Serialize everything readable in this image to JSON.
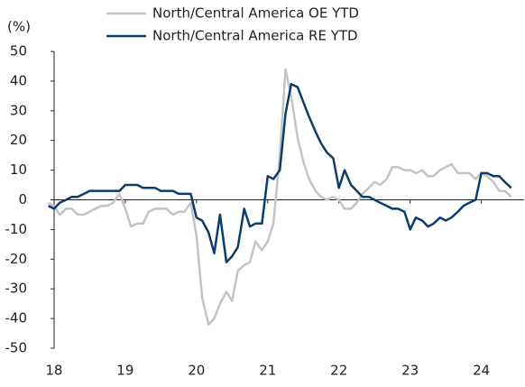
{
  "chart_data": {
    "type": "line",
    "y_unit": "(%)",
    "x": [
      17.92,
      18,
      18.08,
      18.17,
      18.25,
      18.33,
      18.42,
      18.5,
      18.58,
      18.67,
      18.75,
      18.83,
      18.92,
      19,
      19.08,
      19.17,
      19.25,
      19.33,
      19.42,
      19.5,
      19.58,
      19.67,
      19.75,
      19.83,
      19.92,
      20,
      20.08,
      20.17,
      20.25,
      20.33,
      20.42,
      20.5,
      20.58,
      20.67,
      20.75,
      20.83,
      20.92,
      21,
      21.08,
      21.17,
      21.25,
      21.33,
      21.42,
      21.5,
      21.58,
      21.67,
      21.75,
      21.83,
      21.92,
      22,
      22.08,
      22.17,
      22.25,
      22.33,
      22.42,
      22.5,
      22.58,
      22.67,
      22.75,
      22.83,
      22.92,
      23,
      23.08,
      23.17,
      23.25,
      23.33,
      23.42,
      23.5,
      23.58,
      23.67,
      23.75,
      23.83,
      23.92,
      24,
      24.08,
      24.17,
      24.25,
      24.33,
      24.42
    ],
    "series": [
      {
        "name": "North/Central America OE YTD",
        "color": "#c3c3c3",
        "values": [
          -1,
          -2,
          -5,
          -3,
          -3,
          -5,
          -5,
          -4,
          -3,
          -2,
          -2,
          -1,
          2,
          -3,
          -9,
          -8,
          -8,
          -4,
          -3,
          -3,
          -3,
          -5,
          -4,
          -4,
          -1,
          -12,
          -33,
          -42,
          -40,
          -35,
          -31,
          -34,
          -24,
          -22,
          -21,
          -14,
          -17,
          -14,
          -8,
          15,
          44,
          35,
          21,
          13,
          7,
          3,
          1,
          0,
          1,
          0,
          -3,
          -3,
          -1,
          2,
          4,
          6,
          5,
          7,
          11,
          11,
          10,
          10,
          9,
          10,
          8,
          8,
          10,
          11,
          12,
          9,
          9,
          9,
          7,
          9,
          8,
          6,
          3,
          3,
          1
        ]
      },
      {
        "name": "North/Central America RE YTD",
        "color": "#0b3c6c",
        "values": [
          -2,
          -3,
          -1,
          0,
          1,
          1,
          2,
          3,
          3,
          3,
          3,
          3,
          3,
          5,
          5,
          5,
          4,
          4,
          4,
          3,
          3,
          3,
          2,
          2,
          2,
          -6,
          -7,
          -11,
          -18,
          -5,
          -21,
          -19,
          -16,
          -3,
          -9,
          -8,
          -8,
          8,
          7,
          10,
          29,
          39,
          38,
          33,
          28,
          23,
          19,
          16,
          14,
          4,
          10,
          5,
          3,
          1,
          1,
          0,
          -1,
          -2,
          -3,
          -3,
          -4,
          -10,
          -6,
          -7,
          -9,
          -8,
          -6,
          -7,
          -6,
          -4,
          -2,
          -1,
          0,
          9,
          9,
          8,
          8,
          6,
          4
        ]
      }
    ],
    "xlim": [
      17.9,
      24.6
    ],
    "xticks": [
      18,
      19,
      20,
      21,
      22,
      23,
      24
    ],
    "ylim": [
      -50,
      50
    ],
    "yticks": [
      50,
      40,
      30,
      20,
      10,
      0,
      -10,
      -20,
      -30,
      -40,
      -50
    ],
    "zero_line": true,
    "legend": "top"
  }
}
